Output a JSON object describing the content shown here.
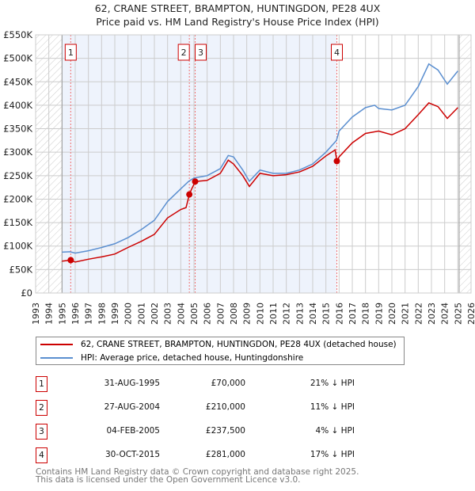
{
  "title_line1": "62, CRANE STREET, BRAMPTON, HUNTINGDON, PE28 4UX",
  "title_line2": "Price paid vs. HM Land Registry's House Price Index (HPI)",
  "chart_data": {
    "type": "line",
    "title": "62, CRANE STREET, BRAMPTON, HUNTINGDON, PE28 4UX — Price paid vs. HM Land Registry's House Price Index (HPI)",
    "xlim": [
      1993,
      2026
    ],
    "ylim": [
      0,
      550000
    ],
    "x_ticks": [
      "1993",
      "1994",
      "1995",
      "1996",
      "1997",
      "1998",
      "1999",
      "2000",
      "2001",
      "2002",
      "2003",
      "2004",
      "2005",
      "2006",
      "2007",
      "2008",
      "2009",
      "2010",
      "2011",
      "2012",
      "2013",
      "2014",
      "2015",
      "2016",
      "2017",
      "2018",
      "2019",
      "2020",
      "2021",
      "2022",
      "2023",
      "2024",
      "2025",
      "2026"
    ],
    "y_ticks": [
      {
        "v": 0,
        "label": "£0"
      },
      {
        "v": 50000,
        "label": "£50K"
      },
      {
        "v": 100000,
        "label": "£100K"
      },
      {
        "v": 150000,
        "label": "£150K"
      },
      {
        "v": 200000,
        "label": "£200K"
      },
      {
        "v": 250000,
        "label": "£250K"
      },
      {
        "v": 300000,
        "label": "£300K"
      },
      {
        "v": 350000,
        "label": "£350K"
      },
      {
        "v": 400000,
        "label": "£400K"
      },
      {
        "v": 450000,
        "label": "£450K"
      },
      {
        "v": 500000,
        "label": "£500K"
      },
      {
        "v": 550000,
        "label": "£550K"
      }
    ],
    "grid": true,
    "shaded_period": [
      1995.0,
      2015.83
    ],
    "data_range": [
      1995.0,
      2025.1
    ],
    "series": [
      {
        "name": "62, CRANE STREET, BRAMPTON, HUNTINGDON, PE28 4UX (detached house)",
        "color": "#cc0000",
        "x": [
          1995.0,
          1995.66,
          1996,
          1997,
          1998,
          1999,
          2000,
          2001,
          2002,
          2003,
          2004,
          2004.4,
          2004.65,
          2004.8,
          2005.1,
          2006,
          2007,
          2007.6,
          2008,
          2008.7,
          2009.2,
          2010,
          2011,
          2012,
          2013,
          2014,
          2015,
          2015.7,
          2015.83,
          2016,
          2017,
          2018,
          2019,
          2020,
          2021,
          2022,
          2022.8,
          2023.5,
          2024.2,
          2025
        ],
        "y": [
          68000,
          70000,
          66000,
          72000,
          77000,
          83000,
          97000,
          110000,
          125000,
          160000,
          178000,
          182000,
          210000,
          220000,
          237500,
          240000,
          255000,
          283000,
          275000,
          250000,
          227000,
          255000,
          250000,
          252000,
          258000,
          270000,
          292000,
          305000,
          281000,
          290000,
          320000,
          340000,
          345000,
          337000,
          350000,
          380000,
          405000,
          397000,
          372000,
          395000
        ]
      },
      {
        "name": "HPI: Average price, detached house, Huntingdonshire",
        "color": "#5b8fd0",
        "x": [
          1995.0,
          1995.6,
          1996,
          1997,
          1998,
          1999,
          2000,
          2001,
          2002,
          2003,
          2004,
          2004.6,
          2005,
          2006,
          2007,
          2007.6,
          2008,
          2008.7,
          2009.2,
          2010,
          2011,
          2012,
          2013,
          2014,
          2015,
          2015.8,
          2016,
          2017,
          2018,
          2018.7,
          2019,
          2020,
          2021,
          2022,
          2022.8,
          2023.5,
          2024.2,
          2025
        ],
        "y": [
          87000,
          88000,
          85000,
          90000,
          97000,
          105000,
          118000,
          135000,
          155000,
          195000,
          222000,
          238000,
          245000,
          250000,
          265000,
          293000,
          290000,
          262000,
          238000,
          262000,
          255000,
          255000,
          262000,
          275000,
          300000,
          325000,
          345000,
          375000,
          395000,
          400000,
          393000,
          390000,
          400000,
          440000,
          488000,
          475000,
          445000,
          473000
        ]
      }
    ],
    "sales": [
      {
        "num": "1",
        "x": 1995.66,
        "price": 70000
      },
      {
        "num": "2",
        "x": 2004.65,
        "price": 210000
      },
      {
        "num": "3",
        "x": 2005.09,
        "price": 237500
      },
      {
        "num": "4",
        "x": 2015.83,
        "price": 281000
      }
    ]
  },
  "legend": [
    {
      "label": "62, CRANE STREET, BRAMPTON, HUNTINGDON, PE28 4UX (detached house)",
      "color": "#cc0000"
    },
    {
      "label": "HPI: Average price, detached house, Huntingdonshire",
      "color": "#5b8fd0"
    }
  ],
  "sales_table": [
    {
      "num": "1",
      "date": "31-AUG-1995",
      "price": "£70,000",
      "hpi": "21% ↓ HPI"
    },
    {
      "num": "2",
      "date": "27-AUG-2004",
      "price": "£210,000",
      "hpi": "11% ↓ HPI"
    },
    {
      "num": "3",
      "date": "04-FEB-2005",
      "price": "£237,500",
      "hpi": "4% ↓ HPI"
    },
    {
      "num": "4",
      "date": "30-OCT-2015",
      "price": "£281,000",
      "hpi": "17% ↓ HPI"
    }
  ],
  "footer_line1": "Contains HM Land Registry data © Crown copyright and database right 2025.",
  "footer_line2": "This data is licensed under the Open Government Licence v3.0."
}
